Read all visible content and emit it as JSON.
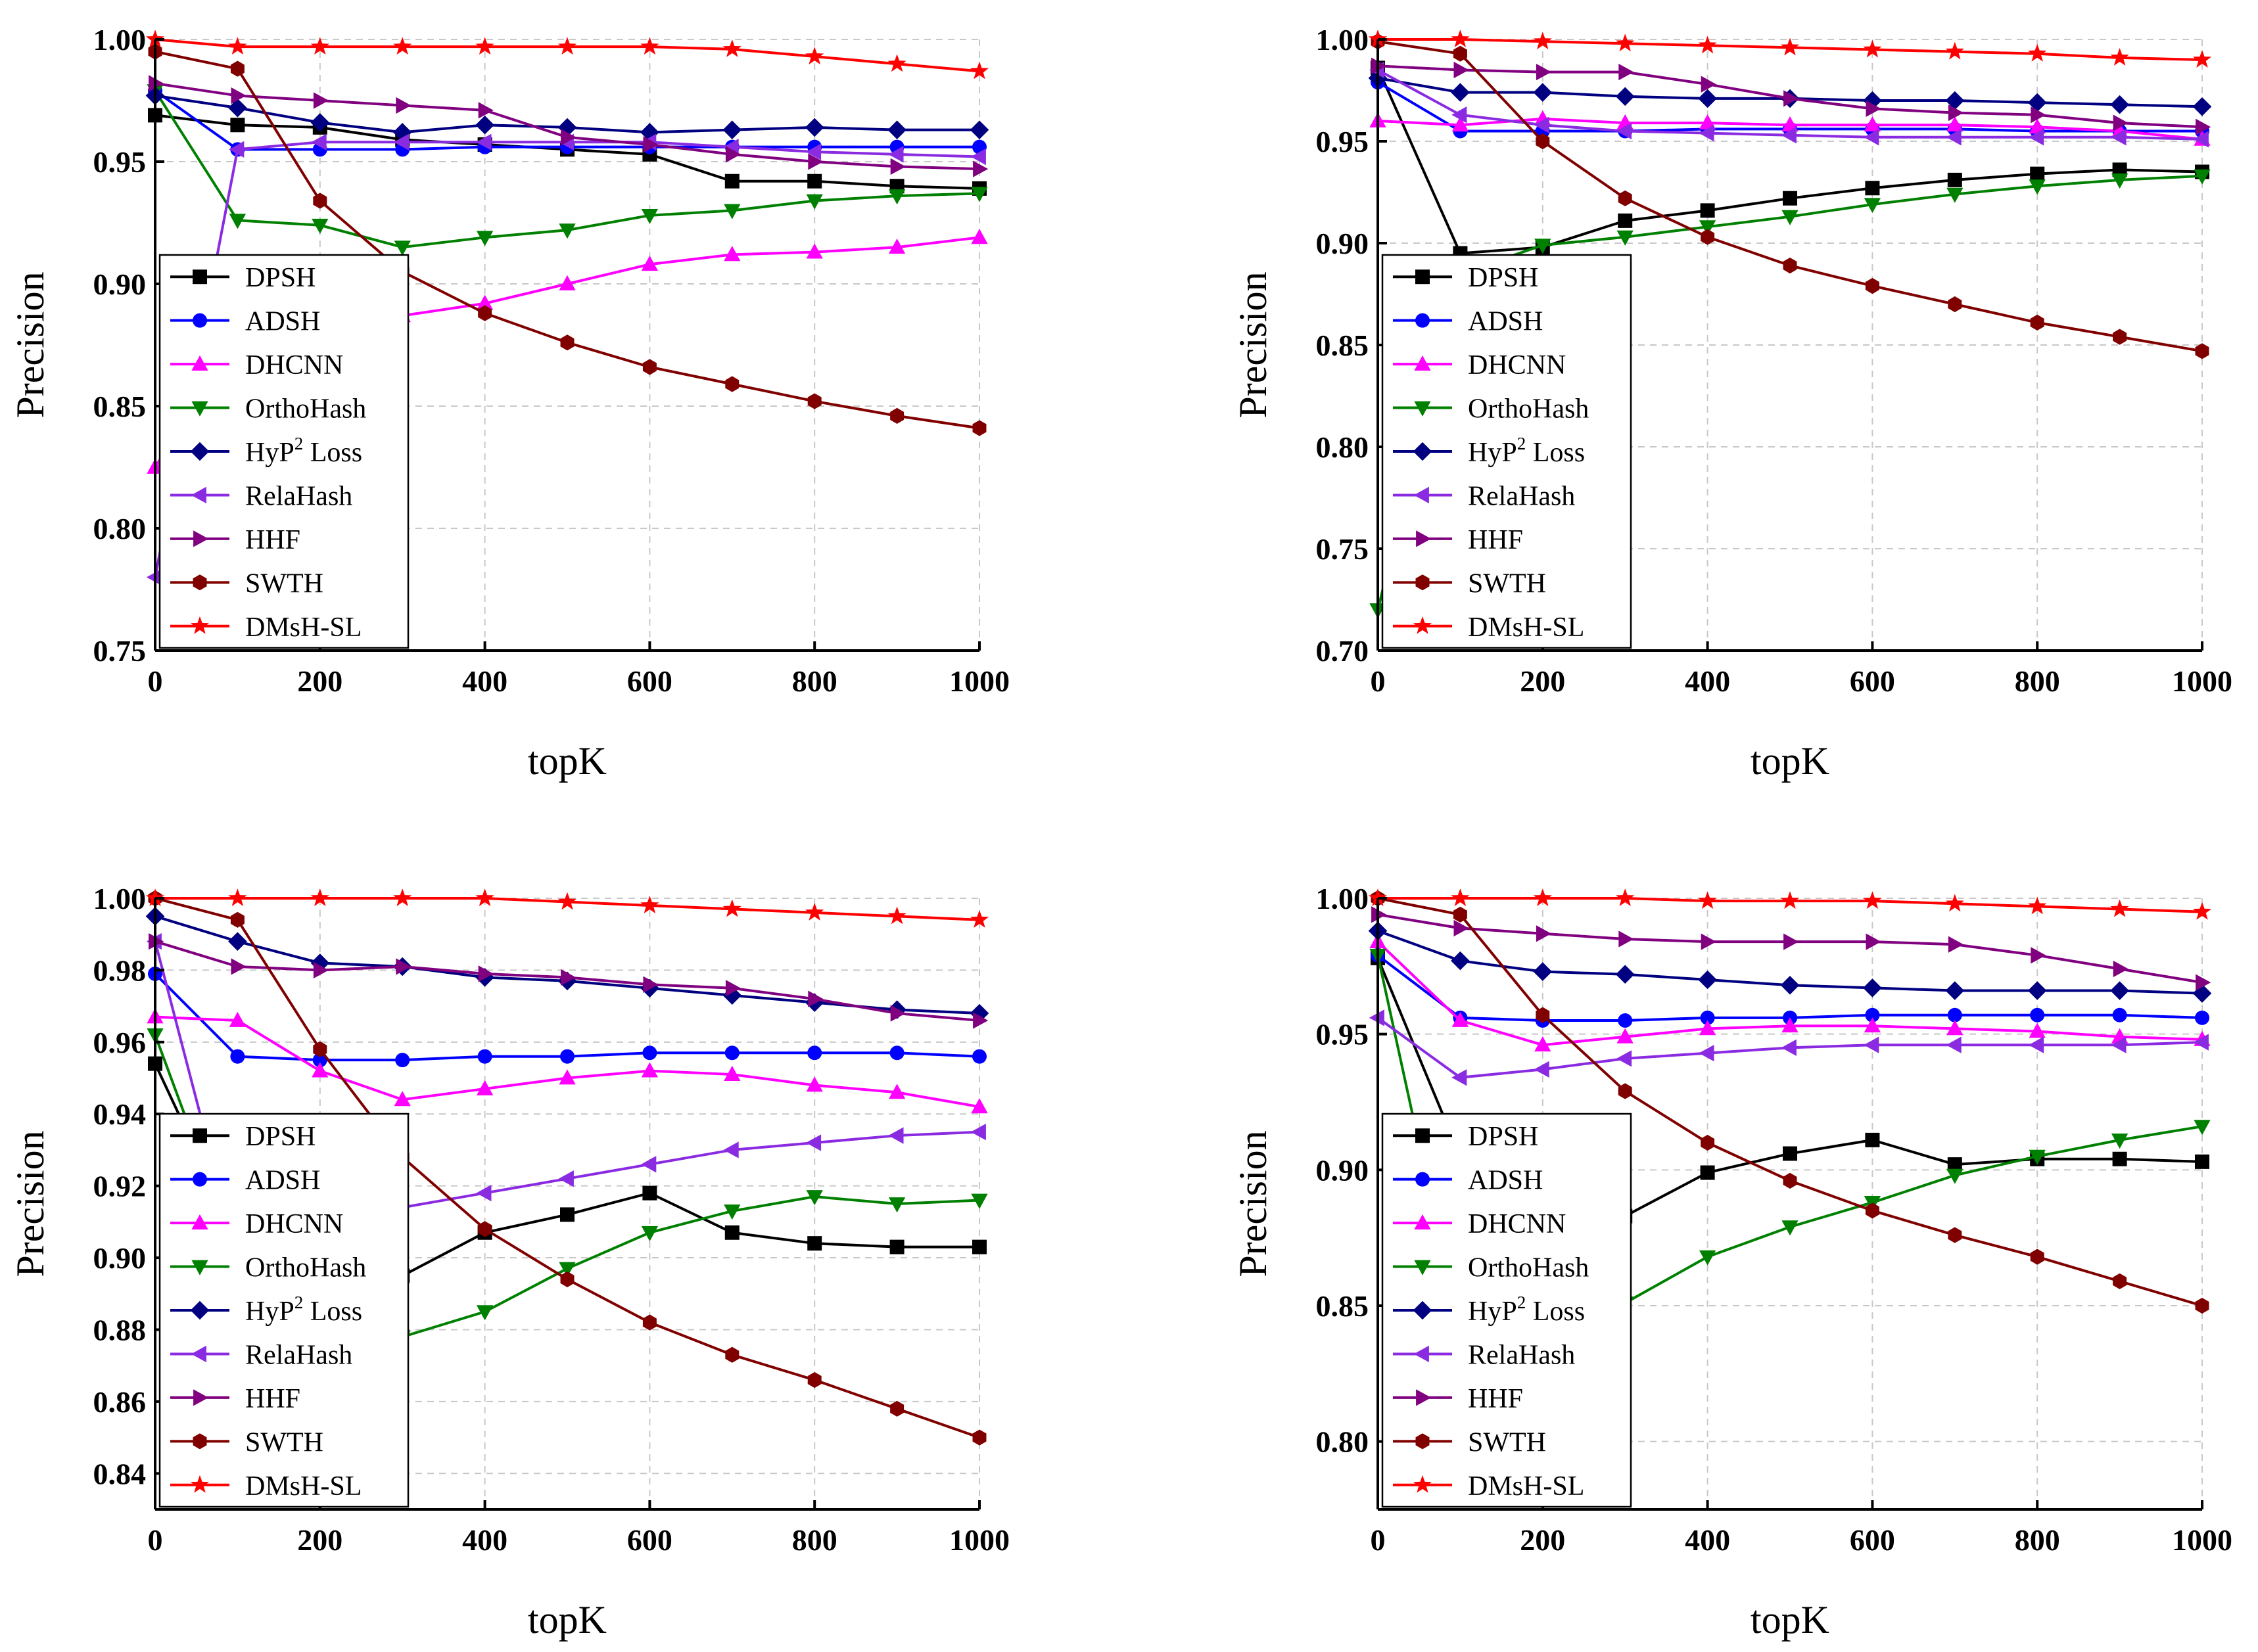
{
  "legend_order": [
    "DPSH",
    "ADSH",
    "DHCNN",
    "OrthoHash",
    "HyP2 Loss",
    "RelaHash",
    "HHF",
    "SWTH",
    "DMsH-SL"
  ],
  "legend_labels": {
    "DPSH": "DPSH",
    "ADSH": "ADSH",
    "DHCNN": "DHCNN",
    "OrthoHash": "OrthoHash",
    "HyP2 Loss": "HyP",
    "HyP2 Loss_sup": "2",
    "HyP2 Loss_suffix": " Loss",
    "RelaHash": "RelaHash",
    "HHF": "HHF",
    "SWTH": "SWTH",
    "DMsH-SL": "DMsH-SL"
  },
  "series_style": {
    "DPSH": {
      "color": "#000000",
      "marker": "square"
    },
    "ADSH": {
      "color": "#0000ff",
      "marker": "circle"
    },
    "DHCNN": {
      "color": "#ff00ff",
      "marker": "triangle-up"
    },
    "OrthoHash": {
      "color": "#008000",
      "marker": "triangle-down"
    },
    "HyP2 Loss": {
      "color": "#000080",
      "marker": "diamond"
    },
    "RelaHash": {
      "color": "#8a2be2",
      "marker": "triangle-left"
    },
    "HHF": {
      "color": "#800080",
      "marker": "triangle-right"
    },
    "SWTH": {
      "color": "#800000",
      "marker": "hexagon"
    },
    "DMsH-SL": {
      "color": "#ff0000",
      "marker": "star"
    }
  },
  "chart_data": [
    {
      "type": "line",
      "xlabel": "topK",
      "ylabel": "Precision",
      "xlim": [
        0,
        1000
      ],
      "ylim": [
        0.75,
        1.0
      ],
      "xticks": [
        0,
        200,
        400,
        600,
        800,
        1000
      ],
      "yticks": [
        0.75,
        0.8,
        0.85,
        0.9,
        0.95,
        1.0
      ],
      "grid": true,
      "legend": "left",
      "x": [
        0,
        100,
        200,
        300,
        400,
        500,
        600,
        700,
        800,
        900,
        1000
      ],
      "series": [
        {
          "name": "DPSH",
          "values": [
            0.969,
            0.965,
            0.964,
            0.959,
            0.957,
            0.955,
            0.953,
            0.942,
            0.942,
            0.94,
            0.939
          ]
        },
        {
          "name": "ADSH",
          "values": [
            0.979,
            0.955,
            0.955,
            0.955,
            0.956,
            0.956,
            0.956,
            0.956,
            0.956,
            0.956,
            0.956
          ]
        },
        {
          "name": "DHCNN",
          "values": [
            0.825,
            0.878,
            0.882,
            0.887,
            0.892,
            0.9,
            0.908,
            0.912,
            0.913,
            0.915,
            0.919
          ]
        },
        {
          "name": "OrthoHash",
          "values": [
            0.979,
            0.926,
            0.924,
            0.915,
            0.919,
            0.922,
            0.928,
            0.93,
            0.934,
            0.936,
            0.937
          ]
        },
        {
          "name": "HyP2 Loss",
          "values": [
            0.977,
            0.972,
            0.966,
            0.962,
            0.965,
            0.964,
            0.962,
            0.963,
            0.964,
            0.963,
            0.963
          ]
        },
        {
          "name": "RelaHash",
          "values": [
            0.78,
            0.955,
            0.958,
            0.958,
            0.958,
            0.958,
            0.958,
            0.956,
            0.954,
            0.953,
            0.952
          ]
        },
        {
          "name": "HHF",
          "values": [
            0.982,
            0.977,
            0.975,
            0.973,
            0.971,
            0.96,
            0.957,
            0.953,
            0.95,
            0.948,
            0.947
          ]
        },
        {
          "name": "SWTH",
          "values": [
            0.995,
            0.988,
            0.934,
            0.905,
            0.888,
            0.876,
            0.866,
            0.859,
            0.852,
            0.846,
            0.841
          ]
        },
        {
          "name": "DMsH-SL",
          "values": [
            1.0,
            0.997,
            0.997,
            0.997,
            0.997,
            0.997,
            0.997,
            0.996,
            0.993,
            0.99,
            0.987
          ]
        }
      ]
    },
    {
      "type": "line",
      "xlabel": "topK",
      "ylabel": "Precision",
      "xlim": [
        0,
        1000
      ],
      "ylim": [
        0.7,
        1.0
      ],
      "xticks": [
        0,
        200,
        400,
        600,
        800,
        1000
      ],
      "yticks": [
        0.7,
        0.75,
        0.8,
        0.85,
        0.9,
        0.95,
        1.0
      ],
      "grid": true,
      "legend": "left",
      "x": [
        0,
        100,
        200,
        300,
        400,
        500,
        600,
        700,
        800,
        900,
        1000
      ],
      "series": [
        {
          "name": "DPSH",
          "values": [
            0.986,
            0.895,
            0.898,
            0.911,
            0.916,
            0.922,
            0.927,
            0.931,
            0.934,
            0.936,
            0.935
          ]
        },
        {
          "name": "ADSH",
          "values": [
            0.979,
            0.955,
            0.955,
            0.955,
            0.956,
            0.956,
            0.956,
            0.956,
            0.955,
            0.955,
            0.955
          ]
        },
        {
          "name": "DHCNN",
          "values": [
            0.96,
            0.958,
            0.961,
            0.959,
            0.959,
            0.958,
            0.958,
            0.958,
            0.957,
            0.955,
            0.951
          ]
        },
        {
          "name": "OrthoHash",
          "values": [
            0.72,
            0.885,
            0.899,
            0.903,
            0.908,
            0.913,
            0.919,
            0.924,
            0.928,
            0.931,
            0.933
          ]
        },
        {
          "name": "HyP2 Loss",
          "values": [
            0.981,
            0.974,
            0.974,
            0.972,
            0.971,
            0.971,
            0.97,
            0.97,
            0.969,
            0.968,
            0.967
          ]
        },
        {
          "name": "RelaHash",
          "values": [
            0.985,
            0.963,
            0.958,
            0.955,
            0.954,
            0.953,
            0.952,
            0.952,
            0.952,
            0.952,
            0.951
          ]
        },
        {
          "name": "HHF",
          "values": [
            0.987,
            0.985,
            0.984,
            0.984,
            0.978,
            0.971,
            0.966,
            0.964,
            0.963,
            0.959,
            0.957
          ]
        },
        {
          "name": "SWTH",
          "values": [
            0.999,
            0.993,
            0.95,
            0.922,
            0.903,
            0.889,
            0.879,
            0.87,
            0.861,
            0.854,
            0.847
          ]
        },
        {
          "name": "DMsH-SL",
          "values": [
            1.0,
            1.0,
            0.999,
            0.998,
            0.997,
            0.996,
            0.995,
            0.994,
            0.993,
            0.991,
            0.99
          ]
        }
      ]
    },
    {
      "type": "line",
      "xlabel": "topK",
      "ylabel": "Precision",
      "xlim": [
        0,
        1000
      ],
      "ylim": [
        0.83,
        1.0
      ],
      "xticks": [
        0,
        200,
        400,
        600,
        800,
        1000
      ],
      "yticks": [
        0.84,
        0.86,
        0.88,
        0.9,
        0.92,
        0.94,
        0.96,
        0.98,
        1.0
      ],
      "grid": true,
      "legend": "left",
      "x": [
        0,
        100,
        200,
        300,
        400,
        500,
        600,
        700,
        800,
        900,
        1000
      ],
      "series": [
        {
          "name": "DPSH",
          "values": [
            0.954,
            0.905,
            0.9,
            0.895,
            0.907,
            0.912,
            0.918,
            0.907,
            0.904,
            0.903,
            0.903
          ]
        },
        {
          "name": "ADSH",
          "values": [
            0.979,
            0.956,
            0.955,
            0.955,
            0.956,
            0.956,
            0.957,
            0.957,
            0.957,
            0.957,
            0.956
          ]
        },
        {
          "name": "DHCNN",
          "values": [
            0.967,
            0.966,
            0.952,
            0.944,
            0.947,
            0.95,
            0.952,
            0.951,
            0.948,
            0.946,
            0.942
          ]
        },
        {
          "name": "OrthoHash",
          "values": [
            0.962,
            0.9,
            0.888,
            0.878,
            0.885,
            0.897,
            0.907,
            0.913,
            0.917,
            0.915,
            0.916
          ]
        },
        {
          "name": "HyP2 Loss",
          "values": [
            0.995,
            0.988,
            0.982,
            0.981,
            0.978,
            0.977,
            0.975,
            0.973,
            0.971,
            0.969,
            0.968
          ]
        },
        {
          "name": "RelaHash",
          "values": [
            0.988,
            0.9,
            0.908,
            0.914,
            0.918,
            0.922,
            0.926,
            0.93,
            0.932,
            0.934,
            0.935
          ]
        },
        {
          "name": "HHF",
          "values": [
            0.988,
            0.981,
            0.98,
            0.981,
            0.979,
            0.978,
            0.976,
            0.975,
            0.972,
            0.968,
            0.966
          ]
        },
        {
          "name": "SWTH",
          "values": [
            1.0,
            0.994,
            0.958,
            0.928,
            0.908,
            0.894,
            0.882,
            0.873,
            0.866,
            0.858,
            0.85
          ]
        },
        {
          "name": "DMsH-SL",
          "values": [
            1.0,
            1.0,
            1.0,
            1.0,
            1.0,
            0.999,
            0.998,
            0.997,
            0.996,
            0.995,
            0.994
          ]
        }
      ]
    },
    {
      "type": "line",
      "xlabel": "topK",
      "ylabel": "Precision",
      "xlim": [
        0,
        1000
      ],
      "ylim": [
        0.775,
        1.0
      ],
      "xticks": [
        0,
        200,
        400,
        600,
        800,
        1000
      ],
      "yticks": [
        0.8,
        0.85,
        0.9,
        0.95,
        1.0
      ],
      "grid": true,
      "legend": "left",
      "x": [
        0,
        100,
        200,
        300,
        400,
        500,
        600,
        700,
        800,
        900,
        1000
      ],
      "series": [
        {
          "name": "DPSH",
          "values": [
            0.978,
            0.905,
            0.88,
            0.883,
            0.899,
            0.906,
            0.911,
            0.902,
            0.904,
            0.904,
            0.903
          ]
        },
        {
          "name": "ADSH",
          "values": [
            0.979,
            0.956,
            0.955,
            0.955,
            0.956,
            0.956,
            0.957,
            0.957,
            0.957,
            0.957,
            0.956
          ]
        },
        {
          "name": "DHCNN",
          "values": [
            0.984,
            0.955,
            0.946,
            0.949,
            0.952,
            0.953,
            0.953,
            0.952,
            0.951,
            0.949,
            0.948
          ]
        },
        {
          "name": "OrthoHash",
          "values": [
            0.979,
            0.84,
            0.842,
            0.851,
            0.868,
            0.879,
            0.888,
            0.898,
            0.905,
            0.911,
            0.916
          ]
        },
        {
          "name": "HyP2 Loss",
          "values": [
            0.988,
            0.977,
            0.973,
            0.972,
            0.97,
            0.968,
            0.967,
            0.966,
            0.966,
            0.966,
            0.965
          ]
        },
        {
          "name": "RelaHash",
          "values": [
            0.956,
            0.934,
            0.937,
            0.941,
            0.943,
            0.945,
            0.946,
            0.946,
            0.946,
            0.946,
            0.947
          ]
        },
        {
          "name": "HHF",
          "values": [
            0.994,
            0.989,
            0.987,
            0.985,
            0.984,
            0.984,
            0.984,
            0.983,
            0.979,
            0.974,
            0.969
          ]
        },
        {
          "name": "SWTH",
          "values": [
            1.0,
            0.994,
            0.957,
            0.929,
            0.91,
            0.896,
            0.885,
            0.876,
            0.868,
            0.859,
            0.85
          ]
        },
        {
          "name": "DMsH-SL",
          "values": [
            1.0,
            1.0,
            1.0,
            1.0,
            0.999,
            0.999,
            0.999,
            0.998,
            0.997,
            0.996,
            0.995
          ]
        }
      ]
    }
  ]
}
